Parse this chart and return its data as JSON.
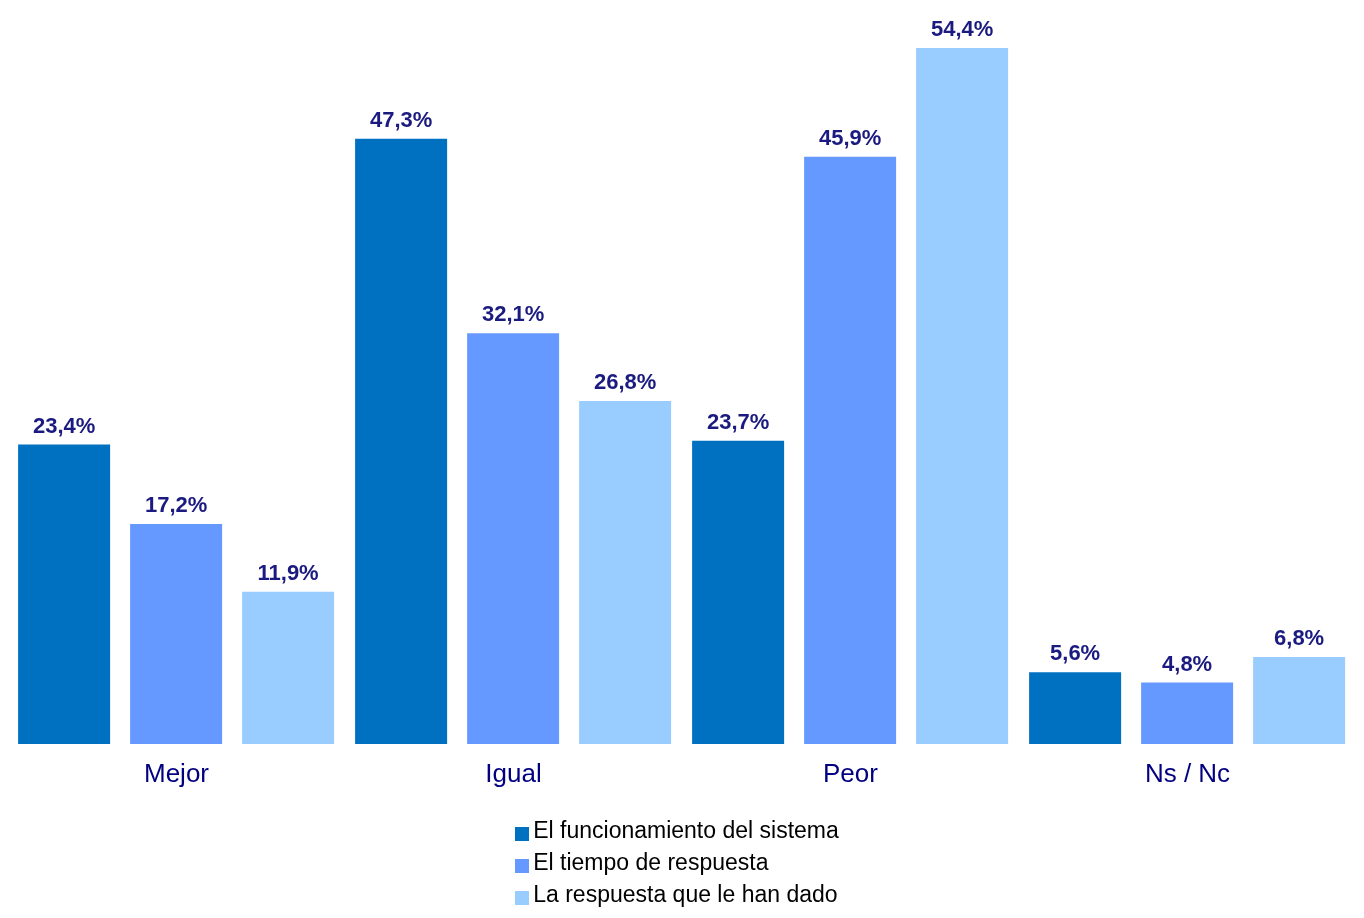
{
  "chart_data": {
    "type": "bar",
    "categories": [
      "Mejor",
      "Igual",
      "Peor",
      "Ns / Nc"
    ],
    "series": [
      {
        "name": "El funcionamiento del sistema",
        "color": "#0070c0",
        "values": [
          23.4,
          47.3,
          23.7,
          5.6
        ],
        "value_labels": [
          "23,4%",
          "47,3%",
          "23,7%",
          "5,6%"
        ]
      },
      {
        "name": "El tiempo de respuesta",
        "color": "#6699ff",
        "values": [
          17.2,
          32.1,
          45.9,
          4.8
        ],
        "value_labels": [
          "17,2%",
          "32,1%",
          "45,9%",
          "4,8%"
        ]
      },
      {
        "name": "La respuesta que le han dado",
        "color": "#99ccff",
        "values": [
          11.9,
          26.8,
          54.4,
          6.8
        ],
        "value_labels": [
          "11,9%",
          "26,8%",
          "54,4%",
          "6,8%"
        ]
      }
    ],
    "legend": "bottom",
    "grid": false
  }
}
